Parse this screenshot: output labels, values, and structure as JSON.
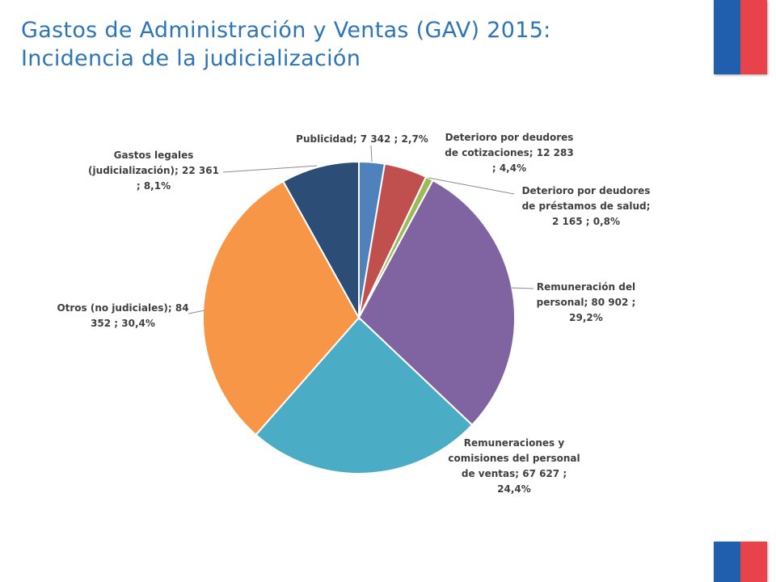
{
  "title": {
    "line1": "Gastos de Administración y Ventas (GAV) 2015:",
    "line2": "Incidencia de la judicialización"
  },
  "chart_data": {
    "type": "pie",
    "title": "",
    "slices": [
      {
        "name": "Publicidad",
        "value": 7342,
        "percent": 2.7,
        "color": "#4f81bd",
        "label_lines": [
          "Publicidad;  7 342 ; 2,7%"
        ]
      },
      {
        "name": "Deterioro por deudores de cotizaciones",
        "value": 12283,
        "percent": 4.4,
        "color": "#c0504d",
        "label_lines": [
          "Deterioro por deudores",
          "de cotizaciones;  12 283",
          "; 4,4%"
        ]
      },
      {
        "name": "Deterioro por deudores de préstamos de salud",
        "value": 2165,
        "percent": 0.8,
        "color": "#9bbb59",
        "label_lines": [
          "Deterioro por deudores",
          "de préstamos de salud;",
          "2 165 ; 0,8%"
        ]
      },
      {
        "name": "Remuneración del personal",
        "value": 80902,
        "percent": 29.2,
        "color": "#8064a2",
        "label_lines": [
          "Remuneración del",
          "personal;  80 902 ;",
          "29,2%"
        ]
      },
      {
        "name": "Remuneraciones y comisiones del personal de ventas",
        "value": 67627,
        "percent": 24.4,
        "color": "#4bacc6",
        "label_lines": [
          "Remuneraciones y",
          "comisiones del personal",
          "de ventas;  67 627 ;",
          "24,4%"
        ]
      },
      {
        "name": "Otros (no judiciales)",
        "value": 84352,
        "percent": 30.4,
        "color": "#f79646",
        "label_lines": [
          "Otros (no judiciales);  84",
          "352 ; 30,4%"
        ]
      },
      {
        "name": "Gastos legales (judicialización)",
        "value": 22361,
        "percent": 8.1,
        "color": "#2c4d75",
        "label_lines": [
          "Gastos legales",
          "(judicialización);  22 361",
          "; 8,1%"
        ]
      }
    ]
  }
}
